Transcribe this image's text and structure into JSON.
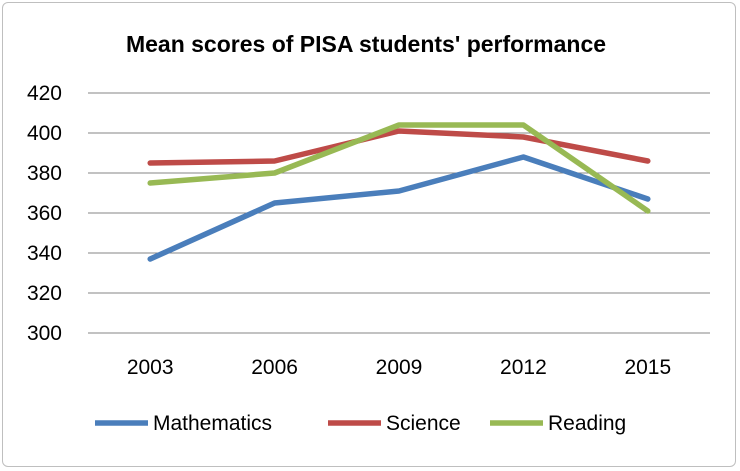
{
  "chart_data": {
    "type": "line",
    "title": "Mean scores of PISA students' performance",
    "xlabel": "",
    "ylabel": "",
    "categories": [
      "2003",
      "2006",
      "2009",
      "2012",
      "2015"
    ],
    "ylim": [
      300,
      420
    ],
    "yticks": [
      300,
      320,
      340,
      360,
      380,
      400,
      420
    ],
    "grid": true,
    "legend_position": "bottom",
    "series": [
      {
        "name": "Mathematics",
        "color": "#4a7ebb",
        "values": [
          337,
          365,
          371,
          388,
          367
        ]
      },
      {
        "name": "Science",
        "color": "#be4b48",
        "values": [
          385,
          386,
          401,
          398,
          386
        ]
      },
      {
        "name": "Reading",
        "color": "#98b954",
        "values": [
          375,
          380,
          404,
          404,
          361
        ]
      }
    ]
  }
}
